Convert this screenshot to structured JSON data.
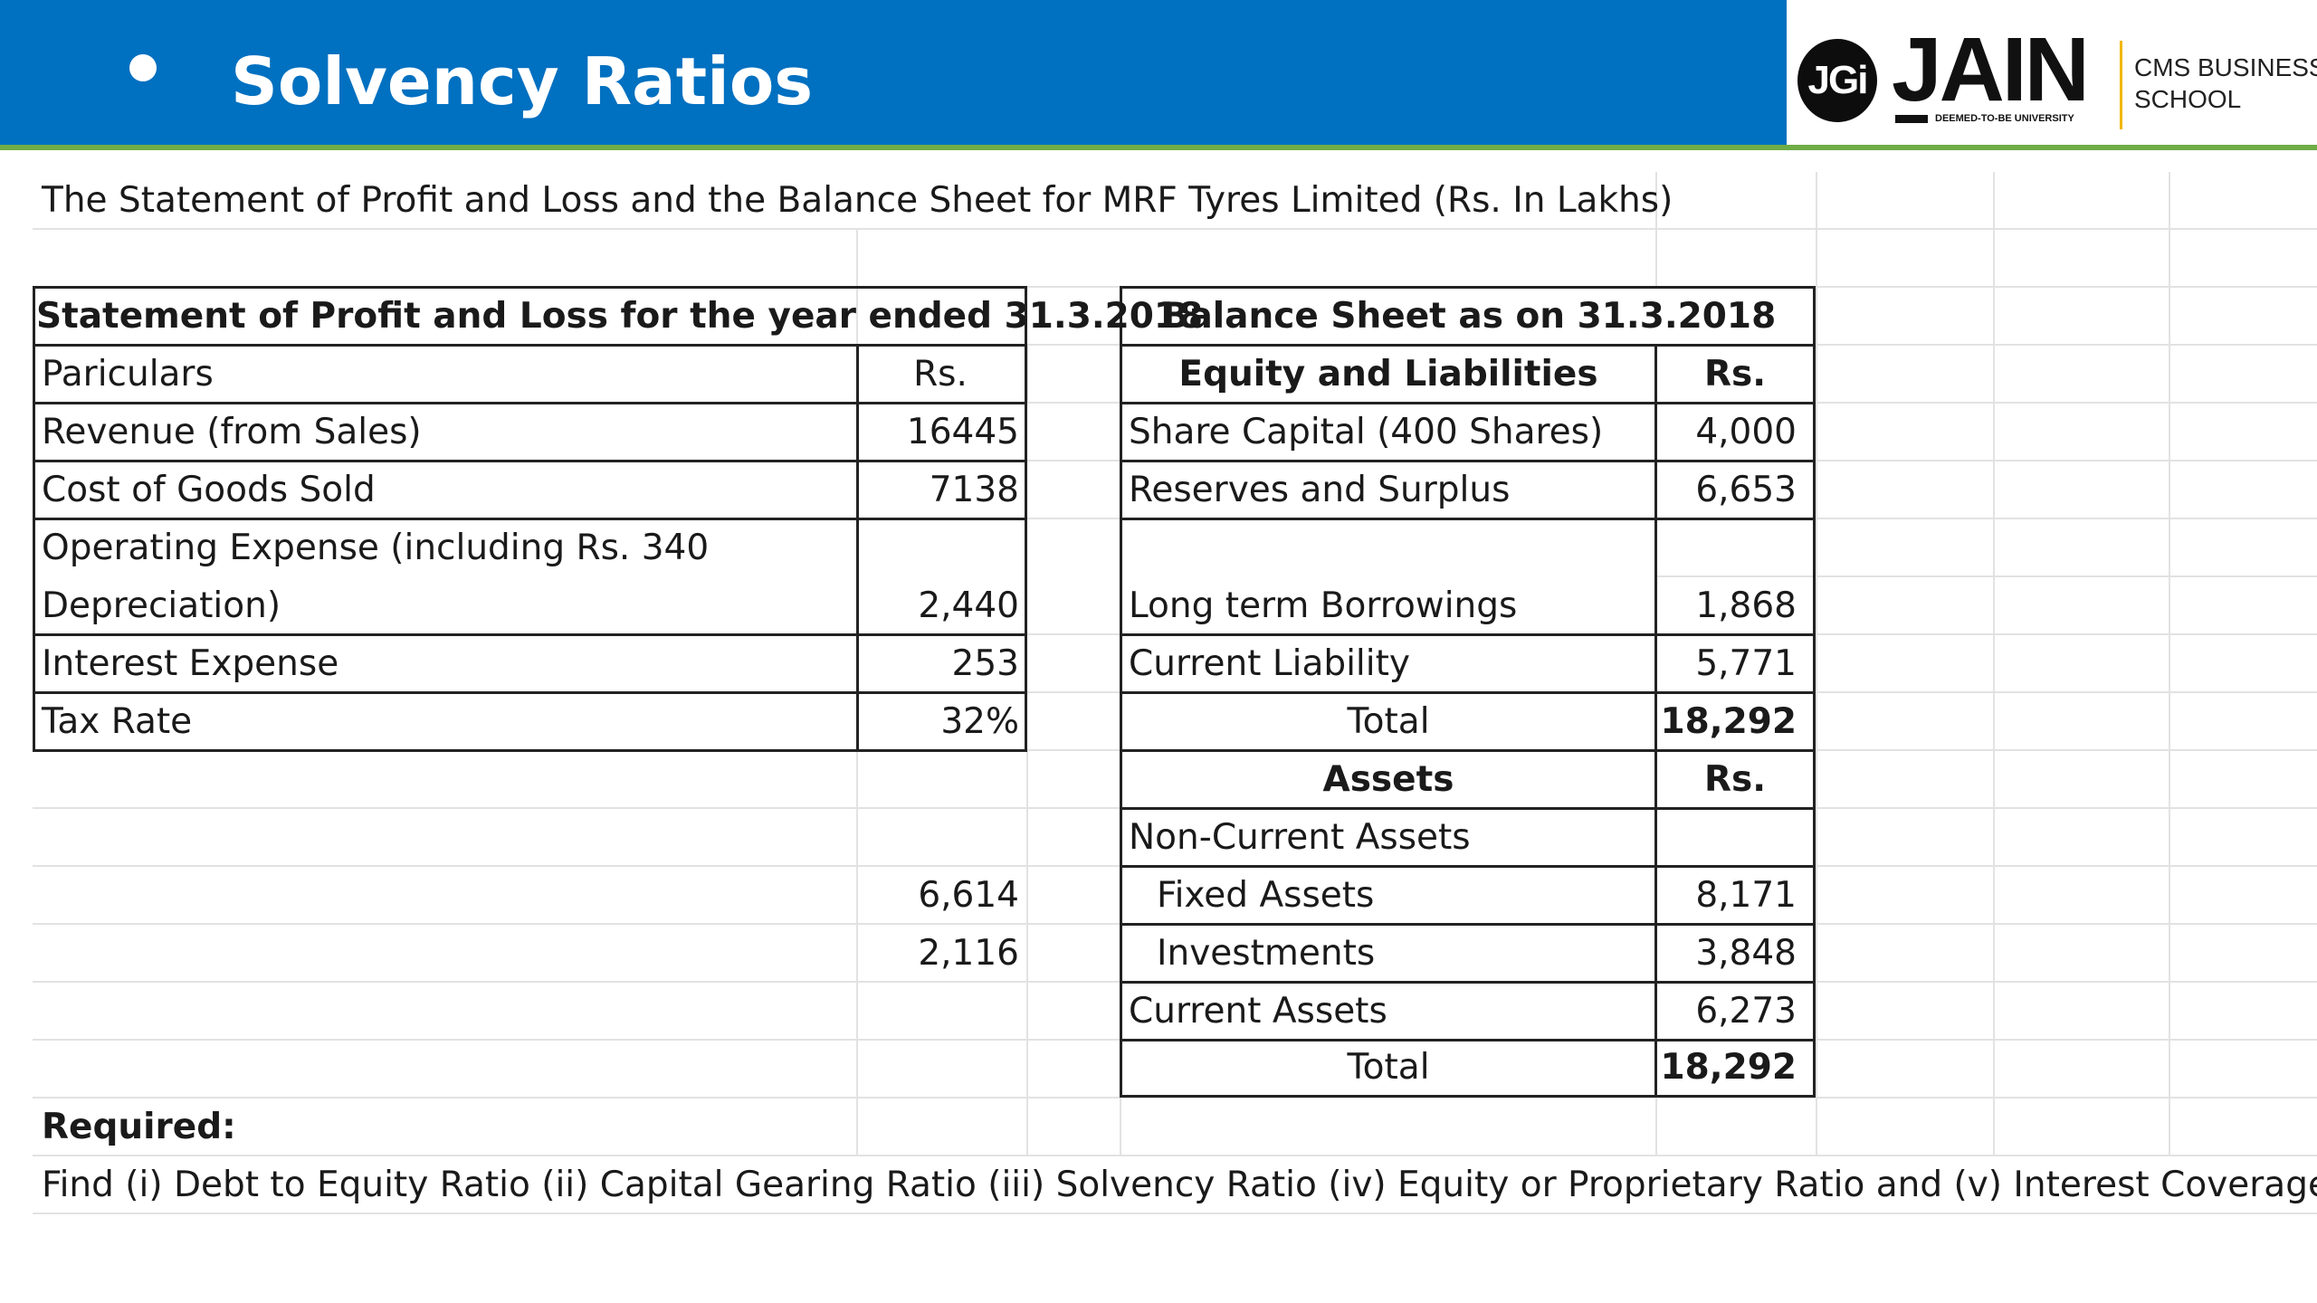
{
  "header": {
    "title": "Solvency Ratios",
    "bg_color": "#0070C0",
    "accent_color": "#6FAC46",
    "bullet_icon": "bullet-dot"
  },
  "logo": {
    "badge": "JGi",
    "name": "JAIN",
    "tagline": "DEEMED-TO-BE UNIVERSITY",
    "school_line1": "CMS BUSINESS",
    "school_line2": "SCHOOL"
  },
  "sheet": {
    "intro": "The Statement of Profit and Loss and the Balance Sheet for MRF Tyres Limited (Rs. In Lakhs)",
    "pl": {
      "title": "Statement of Profit and Loss for the year ended 31.3.2018",
      "col_particulars": "Pariculars",
      "col_rs": "Rs.",
      "rows": [
        {
          "label": "Revenue (from Sales)",
          "value": "16445"
        },
        {
          "label": "Cost of Goods Sold",
          "value": "7138"
        },
        {
          "label": "Operating Expense (including Rs. 340",
          "label2": "Depreciation)",
          "value": "2,440"
        },
        {
          "label": "Interest Expense",
          "value": "253"
        },
        {
          "label": "Tax Rate",
          "value": "32%"
        }
      ],
      "extra_values": [
        "6,614",
        "2,116"
      ]
    },
    "bs": {
      "title": "Balance Sheet as on 31.3.2018",
      "eq_header": "Equity and Liabilities",
      "rs_header": "Rs.",
      "eq_rows": [
        {
          "label": "Share Capital (400 Shares)",
          "value": "4,000"
        },
        {
          "label": "Reserves and Surplus",
          "value": "6,653"
        },
        {
          "label": "Long term Borrowings",
          "value": "1,868"
        },
        {
          "label": "Current Liability",
          "value": "5,771"
        }
      ],
      "eq_total_label": "Total",
      "eq_total_value": "18,292",
      "assets_header": "Assets",
      "assets_rs_header": "Rs.",
      "non_current_label": "Non-Current Assets",
      "asset_rows": [
        {
          "label": "Fixed Assets",
          "value": "8,171"
        },
        {
          "label": "Investments",
          "value": "3,848"
        },
        {
          "label": "Current Assets",
          "value": "6,273"
        }
      ],
      "assets_total_label": "Total",
      "assets_total_value": "18,292"
    },
    "required_label": "Required:",
    "required_text": "Find (i) Debt to Equity Ratio  (ii) Capital Gearing Ratio  (iii) Solvency Ratio  (iv) Equity or Proprietary Ratio and (v) Interest Coverage Ratio"
  }
}
